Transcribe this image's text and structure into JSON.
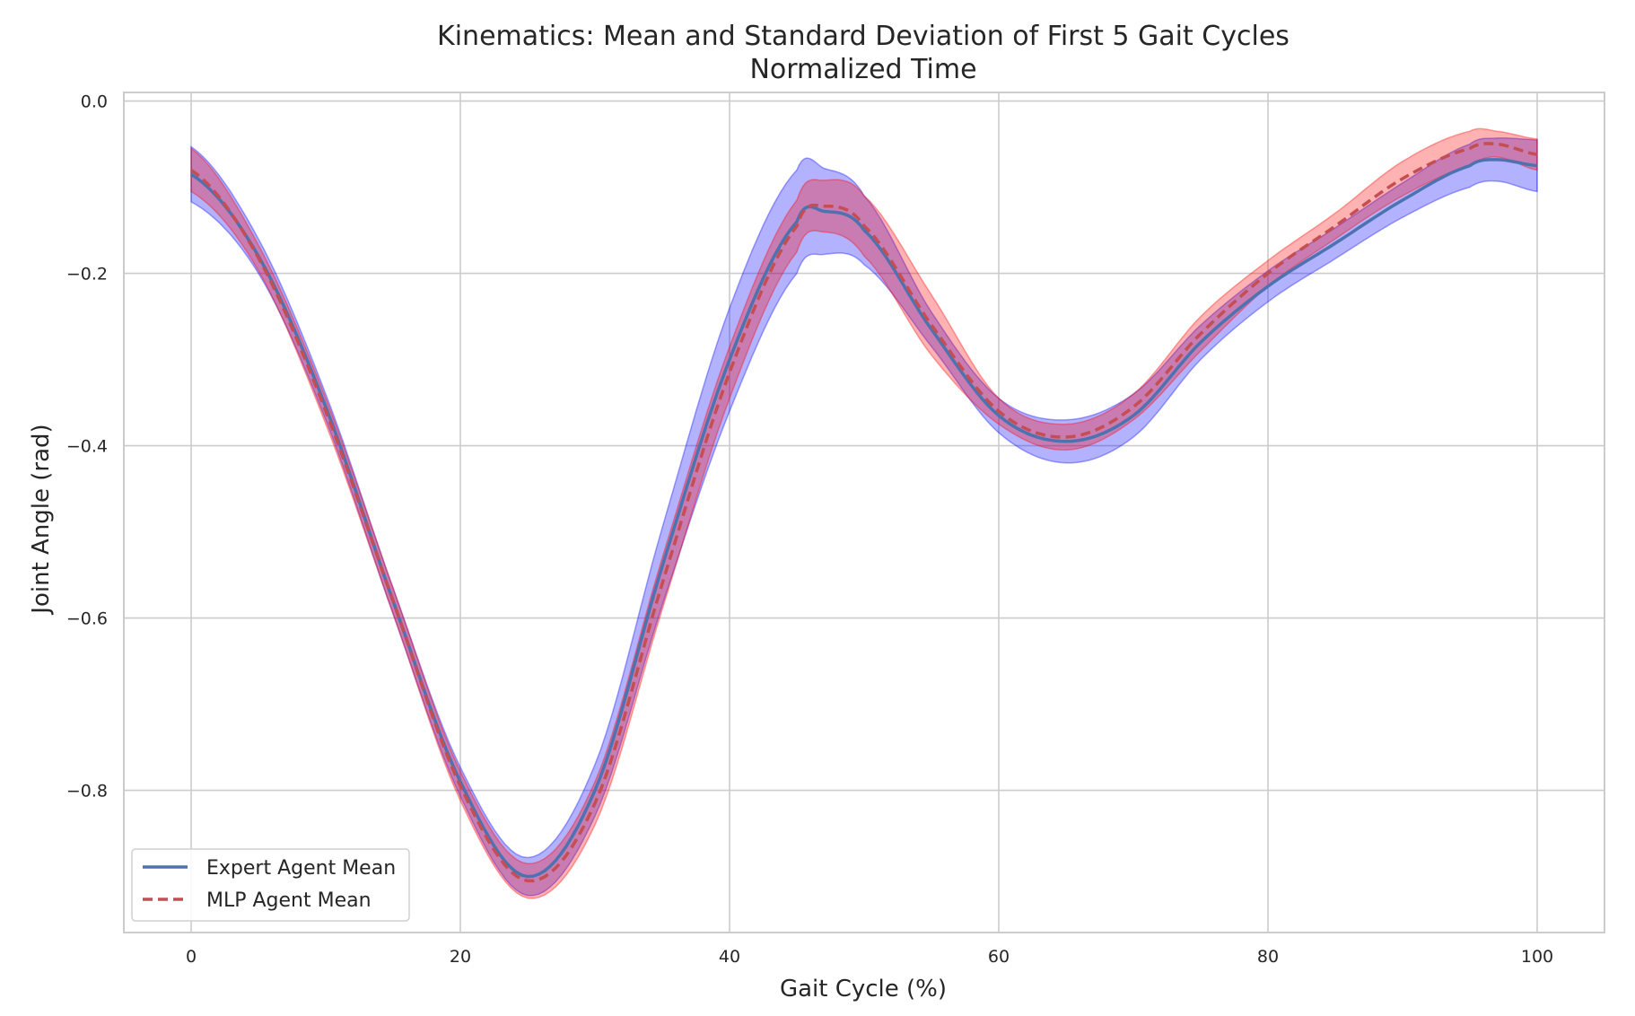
{
  "chart_data": {
    "type": "line",
    "title": "Kinematics: Mean and Standard Deviation of First 5 Gait Cycles",
    "subtitle": "Normalized Time",
    "xlabel": "Gait Cycle (%)",
    "ylabel": "Joint Angle (rad)",
    "xlim": [
      -5,
      105
    ],
    "ylim": [
      -0.965,
      0.01
    ],
    "xticks": [
      0,
      20,
      40,
      60,
      80,
      100
    ],
    "yticks": [
      0.0,
      -0.2,
      -0.4,
      -0.6,
      -0.8
    ],
    "ytick_labels": [
      "0.0",
      "−0.2",
      "−0.4",
      "−0.6",
      "−0.8"
    ],
    "grid": true,
    "legend_position": "lower-left",
    "x": [
      0,
      5,
      10,
      15,
      20,
      25,
      30,
      35,
      40,
      45,
      47,
      50,
      55,
      60,
      65,
      70,
      75,
      80,
      85,
      90,
      95,
      97,
      100
    ],
    "series": [
      {
        "name": "Expert Agent Mean",
        "color": "#4c72b0",
        "line_style": "solid",
        "band_color": "#0000ff",
        "values": [
          -0.085,
          -0.18,
          -0.355,
          -0.58,
          -0.79,
          -0.9,
          -0.8,
          -0.54,
          -0.3,
          -0.14,
          -0.128,
          -0.15,
          -0.265,
          -0.365,
          -0.395,
          -0.365,
          -0.28,
          -0.215,
          -0.165,
          -0.115,
          -0.075,
          -0.068,
          -0.075
        ],
        "std": [
          0.032,
          0.02,
          0.015,
          0.015,
          0.017,
          0.022,
          0.03,
          0.045,
          0.06,
          0.06,
          0.05,
          0.04,
          0.02,
          0.02,
          0.025,
          0.025,
          0.02,
          0.018,
          0.018,
          0.02,
          0.025,
          0.025,
          0.03
        ]
      },
      {
        "name": "MLP Agent Mean",
        "color": "#c44e52",
        "line_style": "dashed",
        "band_color": "#ff0000",
        "values": [
          -0.08,
          -0.182,
          -0.36,
          -0.58,
          -0.795,
          -0.905,
          -0.815,
          -0.56,
          -0.315,
          -0.145,
          -0.122,
          -0.145,
          -0.26,
          -0.36,
          -0.39,
          -0.355,
          -0.27,
          -0.2,
          -0.145,
          -0.09,
          -0.055,
          -0.05,
          -0.062
        ],
        "std": [
          0.025,
          0.015,
          0.015,
          0.015,
          0.017,
          0.02,
          0.025,
          0.03,
          0.03,
          0.03,
          0.03,
          0.035,
          0.035,
          0.015,
          0.015,
          0.015,
          0.02,
          0.015,
          0.015,
          0.02,
          0.02,
          0.015,
          0.018
        ]
      }
    ]
  }
}
